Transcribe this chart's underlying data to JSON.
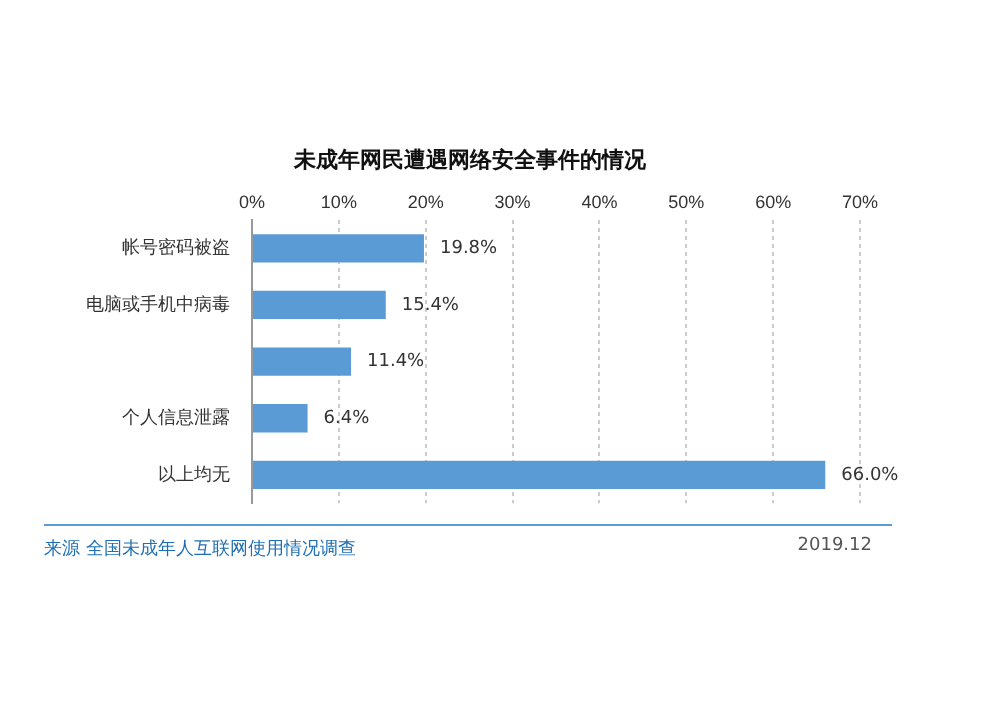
{
  "chart_data": {
    "type": "bar",
    "orientation": "horizontal",
    "title": "未成年网民遭遇网络安全事件的情况",
    "categories": [
      "帐号密码被盗",
      "电脑或手机中病毒",
      null,
      "个人信息泄露",
      "以上均无"
    ],
    "values": [
      19.8,
      15.4,
      11.4,
      6.4,
      66.0
    ],
    "value_labels": [
      "19.8%",
      "15.4%",
      "11.4%",
      "6.4%",
      "66.0%"
    ],
    "color": "#5b9bd5",
    "xlim": [
      0,
      70
    ],
    "xticks": [
      {
        "value": 0,
        "label": "0%"
      },
      {
        "value": 10,
        "label": "10%"
      },
      {
        "value": 20,
        "label": "20%"
      },
      {
        "value": 30,
        "label": "30%"
      },
      {
        "value": 40,
        "label": "40%"
      },
      {
        "value": 50,
        "label": "50%"
      },
      {
        "value": 60,
        "label": "60%"
      },
      {
        "value": 70,
        "label": "70%"
      }
    ],
    "grid": "x",
    "legend": false,
    "annotations": [
      "来源 全国未成年人互联网使用情况调查",
      "2019.12"
    ]
  }
}
